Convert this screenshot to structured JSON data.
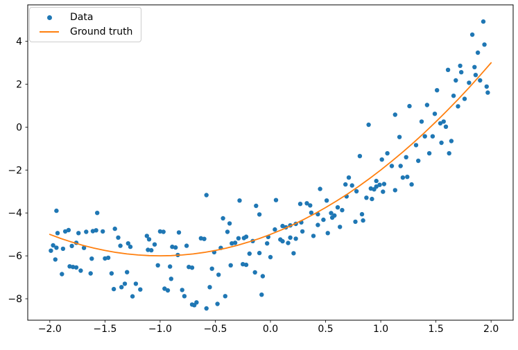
{
  "figure": {
    "background": "#ffffff"
  },
  "chart_data": {
    "type": "scatter",
    "title": "",
    "xlabel": "",
    "ylabel": "",
    "grid": false,
    "legend_position": "upper left",
    "xlim": [
      -2.2,
      2.2
    ],
    "ylim": [
      -9.0,
      5.7
    ],
    "x_ticks": [
      -2.0,
      -1.5,
      -1.0,
      -0.5,
      0.0,
      0.5,
      1.0,
      1.5,
      2.0
    ],
    "x_tick_labels": [
      "−2.0",
      "−1.5",
      "−1.0",
      "−0.5",
      "0.0",
      "0.5",
      "1.0",
      "1.5",
      "2.0"
    ],
    "y_ticks": [
      -8,
      -6,
      -4,
      -2,
      0,
      2,
      4
    ],
    "y_tick_labels": [
      "−8",
      "−6",
      "−4",
      "−2",
      "0",
      "2",
      "4"
    ],
    "series": [
      {
        "name": "Data",
        "type": "scatter",
        "color": "#1f77b4",
        "marker_radius": 3.2,
        "points": [
          [
            -1.94,
            -3.9
          ],
          [
            -1.57,
            -4.0
          ],
          [
            -1.99,
            -5.76
          ],
          [
            -1.97,
            -5.51
          ],
          [
            -1.95,
            -6.17
          ],
          [
            -1.94,
            -5.62
          ],
          [
            -1.93,
            -4.94
          ],
          [
            -1.89,
            -6.85
          ],
          [
            -1.88,
            -5.67
          ],
          [
            -1.86,
            -4.86
          ],
          [
            -1.83,
            -4.8
          ],
          [
            -1.82,
            -6.49
          ],
          [
            -1.8,
            -5.54
          ],
          [
            -1.79,
            -6.52
          ],
          [
            -1.76,
            -5.39
          ],
          [
            -1.76,
            -6.54
          ],
          [
            -1.74,
            -4.94
          ],
          [
            -1.72,
            -6.69
          ],
          [
            -1.69,
            -5.63
          ],
          [
            -1.67,
            -4.88
          ],
          [
            -1.63,
            -6.82
          ],
          [
            -1.62,
            -6.13
          ],
          [
            -1.61,
            -4.85
          ],
          [
            -1.58,
            -4.81
          ],
          [
            -1.52,
            -4.86
          ],
          [
            -1.5,
            -6.12
          ],
          [
            -1.47,
            -6.09
          ],
          [
            -1.44,
            -6.82
          ],
          [
            -1.42,
            -7.55
          ],
          [
            -1.41,
            -4.74
          ],
          [
            -1.38,
            -5.15
          ],
          [
            -1.36,
            -5.53
          ],
          [
            -1.35,
            -7.46
          ],
          [
            -1.32,
            -7.3
          ],
          [
            -1.3,
            -6.76
          ],
          [
            -1.29,
            -5.42
          ],
          [
            -1.27,
            -5.58
          ],
          [
            -1.25,
            -7.89
          ],
          [
            -1.22,
            -7.3
          ],
          [
            -1.18,
            -7.57
          ],
          [
            -1.12,
            -5.07
          ],
          [
            -1.11,
            -5.72
          ],
          [
            -1.1,
            -5.23
          ],
          [
            -1.08,
            -5.74
          ],
          [
            -1.05,
            -5.47
          ],
          [
            -1.02,
            -6.44
          ],
          [
            -1.0,
            -4.86
          ],
          [
            -0.97,
            -4.88
          ],
          [
            -0.96,
            -7.53
          ],
          [
            -0.93,
            -7.61
          ],
          [
            -0.91,
            -6.5
          ],
          [
            -0.9,
            -7.07
          ],
          [
            -0.89,
            -5.58
          ],
          [
            -0.86,
            -5.61
          ],
          [
            -0.84,
            -5.96
          ],
          [
            -0.83,
            -4.91
          ],
          [
            -0.8,
            -7.59
          ],
          [
            -0.78,
            -7.88
          ],
          [
            -0.76,
            -5.53
          ],
          [
            -0.74,
            -6.52
          ],
          [
            -0.71,
            -6.55
          ],
          [
            -0.71,
            -8.27
          ],
          [
            -0.69,
            -8.3
          ],
          [
            -0.67,
            -8.17
          ],
          [
            -0.63,
            -5.18
          ],
          [
            -0.6,
            -5.21
          ],
          [
            -0.58,
            -3.17
          ],
          [
            -0.58,
            -8.45
          ],
          [
            -0.55,
            -7.46
          ],
          [
            -0.53,
            -6.6
          ],
          [
            -0.51,
            -5.83
          ],
          [
            -0.48,
            -8.24
          ],
          [
            -0.47,
            -6.88
          ],
          [
            -0.45,
            -5.63
          ],
          [
            -0.43,
            -4.25
          ],
          [
            -0.41,
            -7.88
          ],
          [
            -0.39,
            -4.88
          ],
          [
            -0.37,
            -4.49
          ],
          [
            -0.36,
            -6.44
          ],
          [
            -0.35,
            -5.42
          ],
          [
            -0.32,
            -5.39
          ],
          [
            -0.29,
            -5.18
          ],
          [
            -0.28,
            -3.42
          ],
          [
            -0.25,
            -6.39
          ],
          [
            -0.24,
            -5.17
          ],
          [
            -0.22,
            -5.11
          ],
          [
            -0.22,
            -6.42
          ],
          [
            -0.19,
            -5.9
          ],
          [
            -0.16,
            -5.31
          ],
          [
            -0.14,
            -6.77
          ],
          [
            -0.13,
            -3.67
          ],
          [
            -0.1,
            -4.07
          ],
          [
            -0.1,
            -5.87
          ],
          [
            -0.08,
            -7.81
          ],
          [
            -0.07,
            -6.95
          ],
          [
            -0.03,
            -5.42
          ],
          [
            -0.02,
            -5.12
          ],
          [
            0.0,
            -6.06
          ],
          [
            0.04,
            -4.77
          ],
          [
            0.05,
            -3.4
          ],
          [
            0.09,
            -5.24
          ],
          [
            0.11,
            -4.61
          ],
          [
            0.11,
            -5.32
          ],
          [
            0.14,
            -4.67
          ],
          [
            0.16,
            -5.4
          ],
          [
            0.18,
            -4.58
          ],
          [
            0.18,
            -5.15
          ],
          [
            0.21,
            -5.88
          ],
          [
            0.23,
            -4.51
          ],
          [
            0.23,
            -5.2
          ],
          [
            0.27,
            -3.58
          ],
          [
            0.28,
            -4.44
          ],
          [
            0.29,
            -4.86
          ],
          [
            0.33,
            -3.55
          ],
          [
            0.36,
            -3.65
          ],
          [
            0.37,
            -3.99
          ],
          [
            0.39,
            -5.07
          ],
          [
            0.43,
            -4.06
          ],
          [
            0.43,
            -4.56
          ],
          [
            0.45,
            -2.88
          ],
          [
            0.48,
            -4.32
          ],
          [
            0.51,
            -3.42
          ],
          [
            0.52,
            -4.94
          ],
          [
            0.55,
            -4.01
          ],
          [
            0.56,
            -4.22
          ],
          [
            0.58,
            -4.12
          ],
          [
            0.61,
            -3.74
          ],
          [
            0.63,
            -4.65
          ],
          [
            0.65,
            -3.87
          ],
          [
            0.68,
            -2.67
          ],
          [
            0.69,
            -3.23
          ],
          [
            0.71,
            -2.35
          ],
          [
            0.74,
            -2.72
          ],
          [
            0.77,
            -4.41
          ],
          [
            0.78,
            -2.99
          ],
          [
            0.81,
            -1.35
          ],
          [
            0.83,
            -4.06
          ],
          [
            0.84,
            -4.35
          ],
          [
            0.87,
            -3.29
          ],
          [
            0.89,
            0.11
          ],
          [
            0.91,
            -2.86
          ],
          [
            0.92,
            -3.35
          ],
          [
            0.94,
            -2.9
          ],
          [
            0.96,
            -2.51
          ],
          [
            0.96,
            -2.77
          ],
          [
            0.99,
            -2.69
          ],
          [
            1.01,
            -1.51
          ],
          [
            1.02,
            -3.01
          ],
          [
            1.03,
            -2.65
          ],
          [
            1.06,
            -1.22
          ],
          [
            1.1,
            -1.81
          ],
          [
            1.13,
            -2.94
          ],
          [
            1.13,
            0.58
          ],
          [
            1.17,
            -0.46
          ],
          [
            1.18,
            -1.81
          ],
          [
            1.2,
            -2.35
          ],
          [
            1.23,
            -1.4
          ],
          [
            1.24,
            -2.32
          ],
          [
            1.26,
            0.98
          ],
          [
            1.28,
            -2.67
          ],
          [
            1.32,
            -0.84
          ],
          [
            1.34,
            -1.57
          ],
          [
            1.37,
            0.26
          ],
          [
            1.4,
            -0.43
          ],
          [
            1.42,
            1.03
          ],
          [
            1.44,
            -1.22
          ],
          [
            1.47,
            -0.43
          ],
          [
            1.49,
            0.62
          ],
          [
            1.51,
            1.72
          ],
          [
            1.54,
            0.18
          ],
          [
            1.55,
            -0.73
          ],
          [
            1.57,
            0.26
          ],
          [
            1.59,
            0.02
          ],
          [
            1.61,
            2.67
          ],
          [
            1.62,
            -1.22
          ],
          [
            1.64,
            -0.65
          ],
          [
            1.66,
            1.46
          ],
          [
            1.68,
            2.18
          ],
          [
            1.7,
            0.97
          ],
          [
            1.72,
            2.86
          ],
          [
            1.73,
            2.56
          ],
          [
            1.76,
            1.32
          ],
          [
            1.8,
            2.07
          ],
          [
            1.83,
            4.31
          ],
          [
            1.85,
            2.8
          ],
          [
            1.86,
            2.43
          ],
          [
            1.88,
            3.47
          ],
          [
            1.9,
            2.18
          ],
          [
            1.93,
            4.92
          ],
          [
            1.94,
            3.85
          ],
          [
            1.96,
            1.89
          ],
          [
            1.97,
            1.61
          ]
        ]
      },
      {
        "name": "Ground truth",
        "type": "line",
        "color": "#ff7f0e",
        "line_width": 1.8,
        "points": [
          [
            -2.0,
            -5.0
          ],
          [
            -1.9,
            -5.19
          ],
          [
            -1.8,
            -5.36
          ],
          [
            -1.7,
            -5.51
          ],
          [
            -1.6,
            -5.64
          ],
          [
            -1.5,
            -5.75
          ],
          [
            -1.4,
            -5.84
          ],
          [
            -1.3,
            -5.91
          ],
          [
            -1.2,
            -5.96
          ],
          [
            -1.1,
            -5.99
          ],
          [
            -1.0,
            -6.0
          ],
          [
            -0.9,
            -5.99
          ],
          [
            -0.8,
            -5.96
          ],
          [
            -0.7,
            -5.91
          ],
          [
            -0.6,
            -5.84
          ],
          [
            -0.5,
            -5.75
          ],
          [
            -0.4,
            -5.64
          ],
          [
            -0.3,
            -5.51
          ],
          [
            -0.2,
            -5.36
          ],
          [
            -0.1,
            -5.19
          ],
          [
            0.0,
            -5.0
          ],
          [
            0.1,
            -4.79
          ],
          [
            0.2,
            -4.56
          ],
          [
            0.3,
            -4.31
          ],
          [
            0.4,
            -4.04
          ],
          [
            0.5,
            -3.75
          ],
          [
            0.6,
            -3.44
          ],
          [
            0.7,
            -3.11
          ],
          [
            0.8,
            -2.76
          ],
          [
            0.9,
            -2.39
          ],
          [
            1.0,
            -2.0
          ],
          [
            1.1,
            -1.59
          ],
          [
            1.2,
            -1.16
          ],
          [
            1.3,
            -0.71
          ],
          [
            1.4,
            -0.24
          ],
          [
            1.5,
            0.25
          ],
          [
            1.6,
            0.76
          ],
          [
            1.7,
            1.29
          ],
          [
            1.8,
            1.84
          ],
          [
            1.9,
            2.41
          ],
          [
            2.0,
            3.0
          ]
        ]
      }
    ]
  },
  "axes_style": {
    "spine_color": "#000000",
    "tick_color": "#000000",
    "tick_label_color": "#000000"
  }
}
